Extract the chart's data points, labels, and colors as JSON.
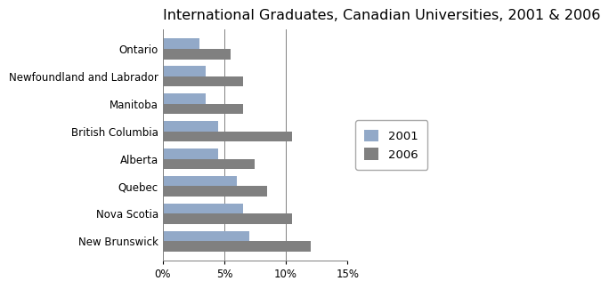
{
  "title": "International Graduates, Canadian Universities, 2001 & 2006",
  "provinces": [
    "New Brunswick",
    "Nova Scotia",
    "Quebec",
    "Alberta",
    "British Columbia",
    "Manitoba",
    "Newfoundland and Labrador",
    "Ontario"
  ],
  "values_2001": [
    7.0,
    6.5,
    6.0,
    4.5,
    4.5,
    3.5,
    3.5,
    3.0
  ],
  "values_2006": [
    12.0,
    10.5,
    8.5,
    7.5,
    10.5,
    6.5,
    6.5,
    5.5
  ],
  "color_2001": "#92A9C8",
  "color_2006": "#808080",
  "xlim": [
    0,
    15
  ],
  "xticks": [
    0,
    5,
    10,
    15
  ],
  "xticklabels": [
    "0%",
    "5%",
    "10%",
    "15%"
  ],
  "legend_labels": [
    "2001",
    "2006"
  ],
  "bar_height": 0.38,
  "background_color": "#FFFFFF",
  "grid_color": "#808080",
  "title_fontsize": 11.5,
  "tick_fontsize": 8.5,
  "legend_fontsize": 9.5
}
